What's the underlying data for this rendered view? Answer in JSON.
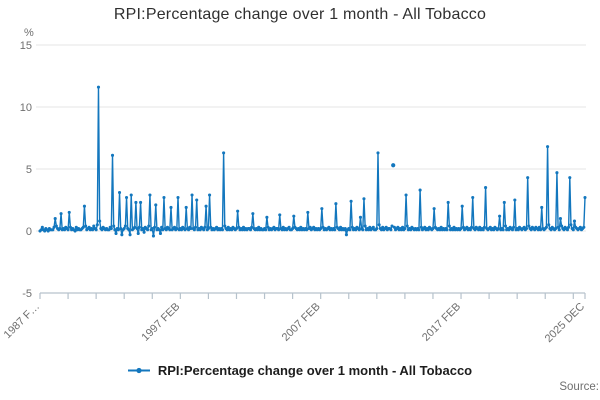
{
  "title": "RPI:Percentage change over 1 month - All Tobacco",
  "legend": {
    "label": "RPI:Percentage change over 1 month - All Tobacco"
  },
  "source_label": "Source:",
  "y_axis": {
    "unit_label": "%",
    "ticks": [
      15,
      10,
      5,
      0,
      -5
    ],
    "min": -5,
    "max": 15
  },
  "x_axis": {
    "tick_labels": [
      {
        "label": "1987 F…",
        "month_index": 0
      },
      {
        "label": "1997 FEB",
        "month_index": 120
      },
      {
        "label": "2007 FEB",
        "month_index": 240
      },
      {
        "label": "2017 FEB",
        "month_index": 360
      },
      {
        "label": "2025 DEC",
        "month_index": 466
      }
    ],
    "minor_tick_years": [
      1987,
      1989,
      1991,
      1993,
      1995,
      1997,
      1999,
      2001,
      2003,
      2005,
      2007,
      2009,
      2011,
      2013,
      2015,
      2017,
      2019,
      2021,
      2023,
      2025
    ]
  },
  "colors": {
    "series": "#1377be",
    "grid": "#e4e4e4",
    "axis": "#b6c2cc",
    "tick_text": "#6f6f6f",
    "title_text": "#303030"
  },
  "chart_data": {
    "type": "line",
    "title": "RPI:Percentage change over 1 month - All Tobacco",
    "series_name": "RPI:Percentage change over 1 month - All Tobacco",
    "ylabel": "%",
    "ylim": [
      -5,
      15
    ],
    "frequency": "monthly",
    "start": "1987-02",
    "end": "2025-12",
    "legend_position": "bottom",
    "grid": "horizontal",
    "marker": "dot",
    "first_year_starts_in_february": true,
    "values_by_year": [
      [
        0.0,
        0.1,
        0.3,
        0.1,
        0.0,
        0.2,
        0.1,
        0.0,
        0.2,
        0.1,
        0.1
      ],
      [
        0.1,
        0.3,
        1.0,
        0.4,
        0.2,
        0.1,
        0.2,
        1.4,
        0.1,
        0.2,
        0.1,
        0.3
      ],
      [
        0.2,
        0.1,
        1.5,
        0.3,
        0.1,
        0.2,
        0.1,
        0.0,
        0.3,
        0.1,
        0.2,
        0.1
      ],
      [
        0.1,
        0.2,
        0.3,
        2.0,
        0.4,
        0.1,
        0.2,
        0.3,
        0.1,
        0.2,
        0.1,
        0.4
      ],
      [
        0.2,
        0.1,
        0.5,
        11.6,
        0.8,
        0.2,
        0.1,
        0.3,
        0.2,
        0.1,
        0.2,
        0.1
      ],
      [
        0.1,
        0.3,
        0.2,
        6.1,
        0.4,
        0.1,
        -0.2,
        0.2,
        0.1,
        3.1,
        0.2,
        -0.3
      ],
      [
        0.1,
        0.2,
        0.4,
        2.7,
        0.2,
        0.1,
        -0.3,
        2.9,
        0.1,
        0.2,
        0.3,
        2.3
      ],
      [
        0.2,
        -0.2,
        0.3,
        2.3,
        0.1,
        0.2,
        -0.1,
        0.3,
        0.2,
        0.1,
        0.4,
        2.9
      ],
      [
        0.1,
        0.2,
        -0.4,
        0.3,
        2.1,
        0.1,
        0.2,
        0.1,
        -0.2,
        0.3,
        0.1,
        2.7
      ],
      [
        0.2,
        0.1,
        0.3,
        0.2,
        0.1,
        1.9,
        0.1,
        0.2,
        0.3,
        0.1,
        0.2,
        2.7
      ],
      [
        0.1,
        0.2,
        0.1,
        0.3,
        0.2,
        0.1,
        1.9,
        0.2,
        0.1,
        0.3,
        0.2,
        2.9
      ],
      [
        0.2,
        0.1,
        0.3,
        2.5,
        0.1,
        0.2,
        0.1,
        0.3,
        0.2,
        0.1,
        0.3,
        2.0
      ],
      [
        0.1,
        0.2,
        2.9,
        0.3,
        0.1,
        0.2,
        0.1,
        0.2,
        0.3,
        0.1,
        0.2,
        0.1
      ],
      [
        0.2,
        0.1,
        6.3,
        0.4,
        0.2,
        0.1,
        0.3,
        0.1,
        0.2,
        0.1,
        0.3,
        0.2
      ],
      [
        0.1,
        0.2,
        1.6,
        0.3,
        0.1,
        0.2,
        0.1,
        0.3,
        0.1,
        0.2,
        0.1,
        0.2
      ],
      [
        0.2,
        0.1,
        0.3,
        1.4,
        0.2,
        0.1,
        0.2,
        0.1,
        0.3,
        0.1,
        0.2,
        0.1
      ],
      [
        0.1,
        0.2,
        0.1,
        1.1,
        0.3,
        0.1,
        0.2,
        0.1,
        0.2,
        0.3,
        0.1,
        0.2
      ],
      [
        0.2,
        0.1,
        1.3,
        0.2,
        0.1,
        0.3,
        0.1,
        0.2,
        0.1,
        0.2,
        0.3,
        0.1
      ],
      [
        0.1,
        0.2,
        1.2,
        0.3,
        0.2,
        0.1,
        0.2,
        0.1,
        0.3,
        0.1,
        0.2,
        0.1
      ],
      [
        0.2,
        0.1,
        1.5,
        0.2,
        0.3,
        0.1,
        0.2,
        0.3,
        0.1,
        0.2,
        0.1,
        0.2
      ],
      [
        0.1,
        0.2,
        1.8,
        0.3,
        0.1,
        0.2,
        0.1,
        0.2,
        0.3,
        0.1,
        0.2,
        0.1
      ],
      [
        0.2,
        0.1,
        2.2,
        0.3,
        0.2,
        0.1,
        0.3,
        0.1,
        0.2,
        0.1,
        0.2,
        -0.3
      ],
      [
        0.1,
        0.2,
        0.1,
        2.4,
        0.3,
        0.1,
        0.2,
        0.1,
        0.3,
        0.2,
        0.1,
        1.1
      ],
      [
        0.2,
        0.1,
        2.6,
        0.4,
        0.1,
        0.2,
        0.1,
        0.3,
        0.1,
        0.2,
        0.3,
        0.1
      ],
      [
        0.1,
        0.2,
        6.3,
        0.5,
        0.2,
        0.1,
        0.3,
        0.1,
        0.2,
        0.3,
        0.1,
        0.2
      ],
      [
        0.2,
        0.1,
        0.4,
        5.3,
        0.3,
        0.1,
        0.2,
        0.3,
        0.1,
        0.2,
        0.1,
        0.3
      ],
      [
        0.1,
        0.2,
        2.9,
        0.4,
        0.1,
        0.2,
        0.1,
        0.3,
        0.2,
        0.1,
        0.2,
        0.1
      ],
      [
        0.2,
        0.1,
        3.3,
        0.3,
        0.1,
        0.2,
        0.3,
        0.1,
        0.2,
        0.1,
        0.3,
        0.2
      ],
      [
        0.1,
        0.2,
        1.8,
        0.3,
        0.2,
        0.1,
        0.2,
        0.1,
        0.3,
        0.1,
        0.2,
        0.1
      ],
      [
        0.2,
        0.1,
        2.3,
        0.4,
        0.1,
        0.2,
        0.1,
        0.3,
        0.1,
        0.2,
        0.1,
        0.2
      ],
      [
        0.1,
        0.2,
        2.0,
        0.3,
        0.1,
        0.2,
        0.3,
        0.1,
        0.2,
        0.1,
        0.3,
        2.7
      ],
      [
        0.2,
        0.1,
        0.3,
        0.2,
        0.1,
        0.3,
        0.1,
        0.2,
        0.1,
        0.3,
        3.5,
        0.2
      ],
      [
        0.1,
        0.2,
        0.3,
        0.1,
        0.2,
        0.1,
        0.3,
        0.2,
        0.1,
        0.2,
        1.2,
        0.1
      ],
      [
        0.2,
        0.1,
        2.3,
        0.4,
        0.1,
        0.2,
        0.1,
        0.3,
        0.2,
        0.1,
        0.3,
        2.5
      ],
      [
        0.1,
        0.2,
        0.1,
        0.3,
        0.2,
        0.1,
        0.2,
        0.3,
        0.1,
        0.2,
        4.3,
        0.4
      ],
      [
        0.2,
        0.1,
        0.3,
        0.2,
        0.1,
        0.3,
        0.2,
        0.1,
        0.3,
        0.1,
        1.9,
        0.2
      ],
      [
        0.1,
        0.2,
        0.3,
        6.8,
        0.5,
        0.2,
        0.1,
        0.3,
        0.2,
        0.1,
        0.2,
        4.7
      ],
      [
        0.3,
        0.1,
        1.0,
        0.4,
        0.2,
        0.1,
        0.3,
        0.2,
        0.1,
        0.3,
        4.3,
        0.5
      ],
      [
        0.2,
        0.1,
        0.8,
        0.3,
        0.2,
        0.1,
        0.2,
        0.3,
        0.1,
        0.2,
        0.3,
        2.7
      ]
    ],
    "detached_indices": [
      302
    ],
    "notable_points": [
      {
        "date": "1991-04",
        "value": 11.6
      },
      {
        "date": "1992-04",
        "value": 6.1
      },
      {
        "date": "2000-03",
        "value": 6.3
      },
      {
        "date": "2011-03",
        "value": 6.3
      },
      {
        "date": "2012-04",
        "value": 5.3,
        "note": "detached marker"
      },
      {
        "date": "2023-04",
        "value": 6.8
      },
      {
        "date": "2023-12",
        "value": 4.7
      },
      {
        "date": "2024-11",
        "value": 4.3
      },
      {
        "date": "2025-12",
        "value": 2.7
      }
    ]
  }
}
